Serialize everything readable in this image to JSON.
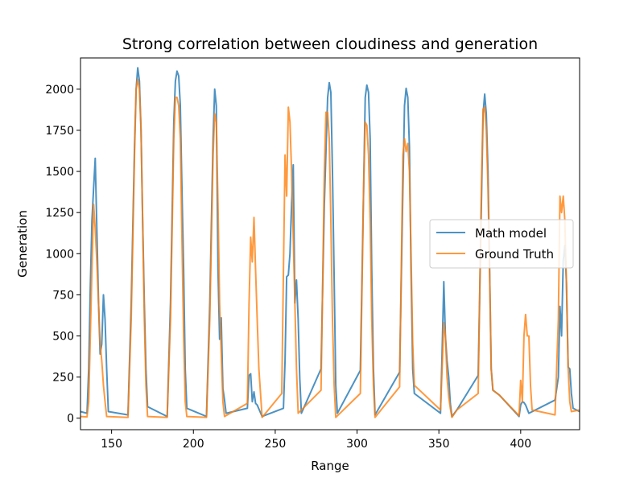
{
  "chart_data": {
    "type": "line",
    "title": "Strong correlation between cloudiness and generation",
    "xlabel": "Range",
    "ylabel": "Generation",
    "xlim": [
      131,
      436
    ],
    "ylim": [
      -70,
      2190
    ],
    "x_ticks": [
      150,
      200,
      250,
      300,
      350,
      400
    ],
    "y_ticks": [
      0,
      250,
      500,
      750,
      1000,
      1250,
      1500,
      1750,
      2000
    ],
    "legend_position": "center-right",
    "grid": false,
    "series": [
      {
        "name": "Math model",
        "color": "#1f77b4",
        "points": [
          [
            131,
            40
          ],
          [
            135,
            30
          ],
          [
            136,
            300
          ],
          [
            137,
            800
          ],
          [
            138,
            1200
          ],
          [
            139,
            1400
          ],
          [
            140,
            1580
          ],
          [
            141,
            1150
          ],
          [
            142,
            700
          ],
          [
            143,
            390
          ],
          [
            144,
            450
          ],
          [
            145,
            750
          ],
          [
            146,
            600
          ],
          [
            147,
            300
          ],
          [
            148,
            40
          ],
          [
            160,
            20
          ],
          [
            162,
            700
          ],
          [
            164,
            1650
          ],
          [
            165,
            2000
          ],
          [
            166,
            2130
          ],
          [
            167,
            2050
          ],
          [
            168,
            1750
          ],
          [
            169,
            1200
          ],
          [
            170,
            700
          ],
          [
            171,
            300
          ],
          [
            172,
            70
          ],
          [
            184,
            10
          ],
          [
            186,
            700
          ],
          [
            188,
            1800
          ],
          [
            189,
            2050
          ],
          [
            190,
            2110
          ],
          [
            191,
            2080
          ],
          [
            192,
            1900
          ],
          [
            193,
            1400
          ],
          [
            194,
            900
          ],
          [
            195,
            300
          ],
          [
            196,
            60
          ],
          [
            208,
            10
          ],
          [
            210,
            700
          ],
          [
            212,
            1700
          ],
          [
            213,
            2000
          ],
          [
            214,
            1900
          ],
          [
            215,
            900
          ],
          [
            216,
            480
          ],
          [
            217,
            610
          ],
          [
            218,
            180
          ],
          [
            219,
            110
          ],
          [
            220,
            30
          ],
          [
            233,
            60
          ],
          [
            234,
            260
          ],
          [
            235,
            270
          ],
          [
            236,
            100
          ],
          [
            237,
            160
          ],
          [
            238,
            90
          ],
          [
            239,
            80
          ],
          [
            242,
            10
          ],
          [
            255,
            60
          ],
          [
            256,
            350
          ],
          [
            257,
            860
          ],
          [
            258,
            870
          ],
          [
            259,
            1000
          ],
          [
            260,
            1300
          ],
          [
            261,
            1540
          ],
          [
            262,
            700
          ],
          [
            263,
            840
          ],
          [
            264,
            600
          ],
          [
            265,
            240
          ],
          [
            266,
            30
          ],
          [
            278,
            300
          ],
          [
            280,
            1300
          ],
          [
            282,
            1950
          ],
          [
            283,
            2040
          ],
          [
            284,
            1980
          ],
          [
            285,
            1500
          ],
          [
            286,
            850
          ],
          [
            287,
            200
          ],
          [
            288,
            30
          ],
          [
            302,
            290
          ],
          [
            304,
            1400
          ],
          [
            305,
            1950
          ],
          [
            306,
            2025
          ],
          [
            307,
            1980
          ],
          [
            308,
            1700
          ],
          [
            309,
            900
          ],
          [
            310,
            300
          ],
          [
            311,
            20
          ],
          [
            326,
            280
          ],
          [
            328,
            1400
          ],
          [
            329,
            1900
          ],
          [
            330,
            2005
          ],
          [
            331,
            1950
          ],
          [
            332,
            1650
          ],
          [
            333,
            900
          ],
          [
            334,
            300
          ],
          [
            335,
            150
          ],
          [
            351,
            30
          ],
          [
            352,
            400
          ],
          [
            353,
            830
          ],
          [
            354,
            500
          ],
          [
            355,
            350
          ],
          [
            356,
            250
          ],
          [
            357,
            90
          ],
          [
            358,
            10
          ],
          [
            361,
            50
          ],
          [
            374,
            260
          ],
          [
            376,
            1300
          ],
          [
            377,
            1850
          ],
          [
            378,
            1970
          ],
          [
            379,
            1850
          ],
          [
            380,
            1500
          ],
          [
            381,
            900
          ],
          [
            382,
            300
          ],
          [
            383,
            170
          ],
          [
            387,
            140
          ],
          [
            399,
            10
          ],
          [
            400,
            80
          ],
          [
            401,
            100
          ],
          [
            402,
            95
          ],
          [
            403,
            80
          ],
          [
            405,
            30
          ],
          [
            421,
            110
          ],
          [
            423,
            250
          ],
          [
            424,
            680
          ],
          [
            425,
            500
          ],
          [
            426,
            960
          ],
          [
            427,
            1050
          ],
          [
            428,
            820
          ],
          [
            429,
            310
          ],
          [
            430,
            300
          ],
          [
            431,
            150
          ],
          [
            432,
            60
          ],
          [
            436,
            40
          ]
        ]
      },
      {
        "name": "Ground Truth",
        "color": "#ff7f0e",
        "points": [
          [
            131,
            10
          ],
          [
            135,
            8
          ],
          [
            136,
            100
          ],
          [
            137,
            500
          ],
          [
            138,
            900
          ],
          [
            139,
            1300
          ],
          [
            140,
            1150
          ],
          [
            141,
            950
          ],
          [
            142,
            700
          ],
          [
            143,
            450
          ],
          [
            144,
            350
          ],
          [
            145,
            200
          ],
          [
            146,
            100
          ],
          [
            147,
            10
          ],
          [
            160,
            5
          ],
          [
            162,
            600
          ],
          [
            164,
            1600
          ],
          [
            165,
            2000
          ],
          [
            166,
            2060
          ],
          [
            167,
            2000
          ],
          [
            168,
            1750
          ],
          [
            169,
            1200
          ],
          [
            170,
            600
          ],
          [
            171,
            200
          ],
          [
            172,
            10
          ],
          [
            184,
            5
          ],
          [
            186,
            600
          ],
          [
            188,
            1700
          ],
          [
            189,
            1950
          ],
          [
            190,
            1950
          ],
          [
            191,
            1900
          ],
          [
            192,
            1700
          ],
          [
            193,
            1100
          ],
          [
            194,
            500
          ],
          [
            195,
            100
          ],
          [
            196,
            10
          ],
          [
            208,
            5
          ],
          [
            210,
            600
          ],
          [
            212,
            1600
          ],
          [
            213,
            1850
          ],
          [
            214,
            1800
          ],
          [
            215,
            1300
          ],
          [
            216,
            700
          ],
          [
            217,
            400
          ],
          [
            218,
            100
          ],
          [
            219,
            10
          ],
          [
            233,
            90
          ],
          [
            234,
            700
          ],
          [
            235,
            1100
          ],
          [
            236,
            950
          ],
          [
            237,
            1220
          ],
          [
            238,
            900
          ],
          [
            239,
            600
          ],
          [
            240,
            300
          ],
          [
            242,
            5
          ],
          [
            254,
            150
          ],
          [
            256,
            1600
          ],
          [
            257,
            1350
          ],
          [
            258,
            1890
          ],
          [
            259,
            1800
          ],
          [
            260,
            1500
          ],
          [
            261,
            1100
          ],
          [
            262,
            700
          ],
          [
            263,
            300
          ],
          [
            264,
            30
          ],
          [
            278,
            170
          ],
          [
            280,
            1500
          ],
          [
            281,
            1860
          ],
          [
            282,
            1860
          ],
          [
            283,
            1700
          ],
          [
            284,
            1200
          ],
          [
            285,
            600
          ],
          [
            286,
            200
          ],
          [
            287,
            5
          ],
          [
            302,
            150
          ],
          [
            304,
            1400
          ],
          [
            305,
            1800
          ],
          [
            306,
            1780
          ],
          [
            307,
            1600
          ],
          [
            308,
            1200
          ],
          [
            309,
            600
          ],
          [
            310,
            200
          ],
          [
            311,
            5
          ],
          [
            326,
            190
          ],
          [
            328,
            1600
          ],
          [
            329,
            1700
          ],
          [
            330,
            1620
          ],
          [
            331,
            1670
          ],
          [
            332,
            1500
          ],
          [
            333,
            1000
          ],
          [
            334,
            450
          ],
          [
            335,
            200
          ],
          [
            351,
            50
          ],
          [
            352,
            300
          ],
          [
            353,
            580
          ],
          [
            354,
            500
          ],
          [
            355,
            250
          ],
          [
            356,
            130
          ],
          [
            357,
            60
          ],
          [
            358,
            5
          ],
          [
            361,
            50
          ],
          [
            374,
            150
          ],
          [
            376,
            1400
          ],
          [
            377,
            1880
          ],
          [
            378,
            1890
          ],
          [
            379,
            1750
          ],
          [
            380,
            1400
          ],
          [
            381,
            900
          ],
          [
            382,
            300
          ],
          [
            383,
            170
          ],
          [
            387,
            140
          ],
          [
            399,
            15
          ],
          [
            400,
            230
          ],
          [
            401,
            100
          ],
          [
            402,
            500
          ],
          [
            403,
            630
          ],
          [
            404,
            500
          ],
          [
            405,
            500
          ],
          [
            406,
            200
          ],
          [
            407,
            50
          ],
          [
            421,
            20
          ],
          [
            423,
            600
          ],
          [
            424,
            1350
          ],
          [
            425,
            1250
          ],
          [
            426,
            1350
          ],
          [
            427,
            1200
          ],
          [
            428,
            800
          ],
          [
            429,
            300
          ],
          [
            430,
            100
          ],
          [
            431,
            40
          ],
          [
            436,
            50
          ]
        ]
      }
    ]
  }
}
